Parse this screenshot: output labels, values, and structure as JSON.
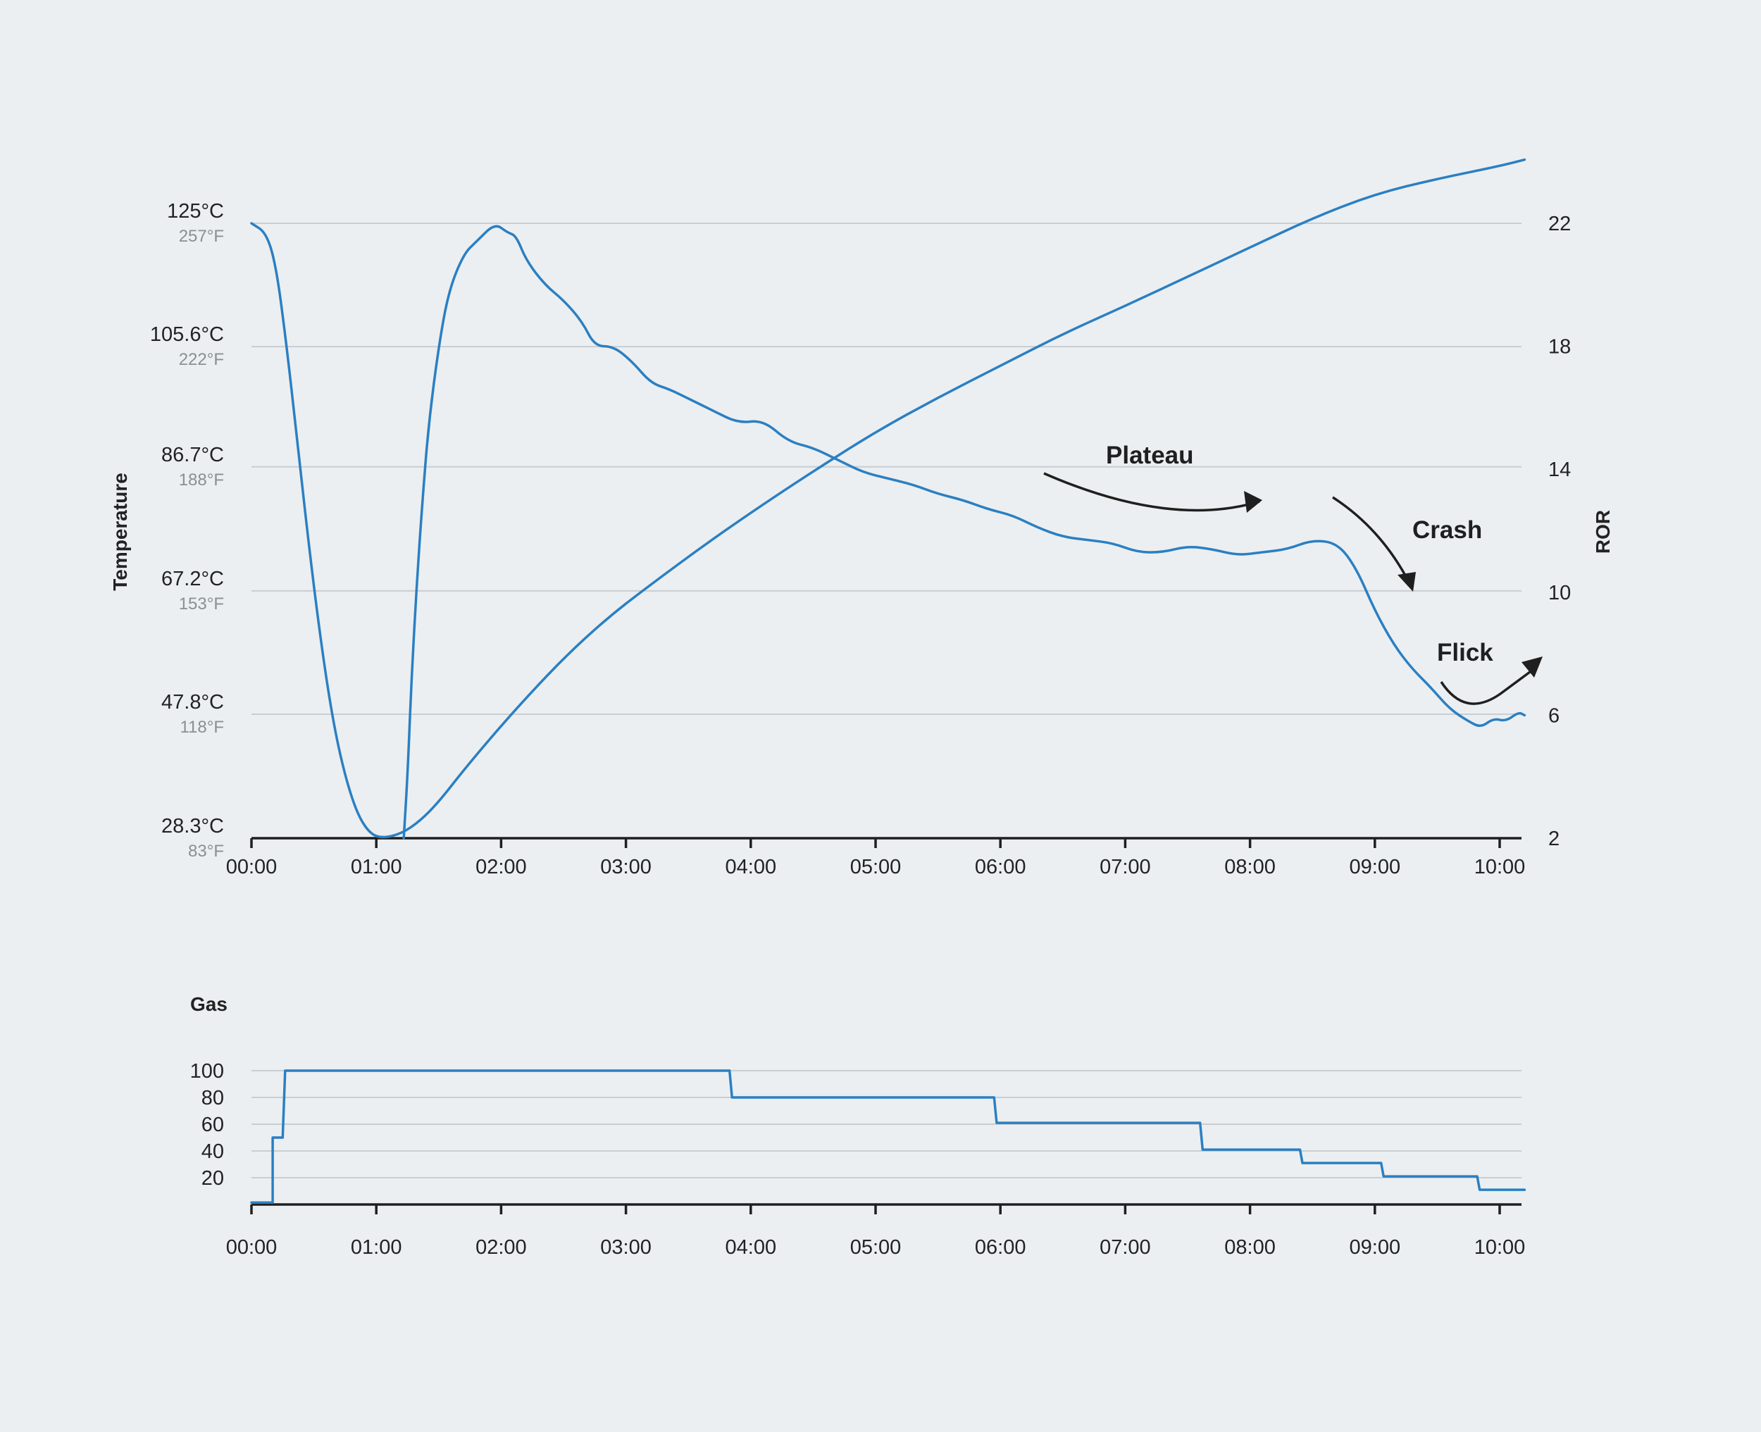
{
  "chart_data": [
    {
      "type": "line",
      "xlabel": "",
      "ylabel": "Temperature",
      "y2label": "ROR",
      "x_ticks": [
        "00:00",
        "01:00",
        "02:00",
        "03:00",
        "04:00",
        "05:00",
        "06:00",
        "07:00",
        "08:00",
        "09:00",
        "10:00"
      ],
      "x_range_min": [
        0,
        10.2
      ],
      "y_ticks": [
        {
          "c": "125°C",
          "f": "257°F",
          "v": 125
        },
        {
          "c": "105.6°C",
          "f": "222°F",
          "v": 105.6
        },
        {
          "c": "86.7°C",
          "f": "188°F",
          "v": 86.7
        },
        {
          "c": "67.2°C",
          "f": "153°F",
          "v": 67.2
        },
        {
          "c": "47.8°C",
          "f": "118°F",
          "v": 47.8
        },
        {
          "c": "28.3°C",
          "f": "83°F",
          "v": 28.3
        }
      ],
      "ylim": [
        28.3,
        125
      ],
      "y2_ticks": [
        "22",
        "18",
        "14",
        "10",
        "6",
        "2"
      ],
      "y2lim": [
        2,
        22
      ],
      "grid": true,
      "series": [
        {
          "axis": "left",
          "points_min_value": [
            [
              0,
              125
            ],
            [
              0.12,
              123.5
            ],
            [
              0.2,
              118
            ],
            [
              0.28,
              106
            ],
            [
              0.36,
              92
            ],
            [
              0.45,
              76
            ],
            [
              0.55,
              60
            ],
            [
              0.65,
              47
            ],
            [
              0.75,
              38
            ],
            [
              0.85,
              32
            ],
            [
              0.95,
              29
            ],
            [
              1.05,
              28.3
            ],
            [
              1.2,
              29
            ],
            [
              1.35,
              31
            ],
            [
              1.5,
              34
            ],
            [
              1.7,
              39
            ],
            [
              2.0,
              46
            ],
            [
              2.3,
              52.5
            ],
            [
              2.6,
              58.5
            ],
            [
              2.9,
              63.7
            ],
            [
              3.2,
              68.2
            ],
            [
              3.6,
              74
            ],
            [
              4.0,
              79.5
            ],
            [
              4.5,
              86
            ],
            [
              5.0,
              92.2
            ],
            [
              5.5,
              97.6
            ],
            [
              6.0,
              102.6
            ],
            [
              6.5,
              107.6
            ],
            [
              7.0,
              112
            ],
            [
              7.5,
              116.6
            ],
            [
              8.0,
              121.2
            ],
            [
              8.5,
              125.8
            ],
            [
              9.0,
              129.6
            ],
            [
              9.5,
              132
            ],
            [
              10.0,
              134
            ],
            [
              10.2,
              135
            ]
          ]
        },
        {
          "axis": "right",
          "points_min_value": [
            [
              1.22,
              2
            ],
            [
              1.25,
              4
            ],
            [
              1.28,
              7
            ],
            [
              1.32,
              10
            ],
            [
              1.37,
              13
            ],
            [
              1.42,
              15.5
            ],
            [
              1.5,
              18
            ],
            [
              1.58,
              19.8
            ],
            [
              1.7,
              21
            ],
            [
              1.8,
              21.4
            ],
            [
              1.95,
              22
            ],
            [
              2.05,
              21.7
            ],
            [
              2.12,
              21.6
            ],
            [
              2.2,
              20.8
            ],
            [
              2.35,
              20
            ],
            [
              2.5,
              19.5
            ],
            [
              2.65,
              18.8
            ],
            [
              2.75,
              18
            ],
            [
              2.9,
              18
            ],
            [
              3.05,
              17.5
            ],
            [
              3.2,
              16.8
            ],
            [
              3.35,
              16.6
            ],
            [
              3.5,
              16.3
            ],
            [
              3.7,
              15.9
            ],
            [
              3.9,
              15.5
            ],
            [
              4.1,
              15.6
            ],
            [
              4.3,
              14.9
            ],
            [
              4.5,
              14.7
            ],
            [
              4.7,
              14.3
            ],
            [
              4.9,
              13.9
            ],
            [
              5.1,
              13.7
            ],
            [
              5.3,
              13.5
            ],
            [
              5.5,
              13.2
            ],
            [
              5.7,
              13
            ],
            [
              5.9,
              12.7
            ],
            [
              6.1,
              12.5
            ],
            [
              6.3,
              12.1
            ],
            [
              6.5,
              11.8
            ],
            [
              6.7,
              11.7
            ],
            [
              6.9,
              11.6
            ],
            [
              7.1,
              11.3
            ],
            [
              7.3,
              11.3
            ],
            [
              7.5,
              11.5
            ],
            [
              7.7,
              11.4
            ],
            [
              7.9,
              11.2
            ],
            [
              8.1,
              11.3
            ],
            [
              8.3,
              11.4
            ],
            [
              8.5,
              11.7
            ],
            [
              8.7,
              11.6
            ],
            [
              8.85,
              10.8
            ],
            [
              9.0,
              9.4
            ],
            [
              9.15,
              8.3
            ],
            [
              9.3,
              7.5
            ],
            [
              9.45,
              6.9
            ],
            [
              9.6,
              6.2
            ],
            [
              9.75,
              5.8
            ],
            [
              9.85,
              5.6
            ],
            [
              9.95,
              5.9
            ],
            [
              10.05,
              5.8
            ],
            [
              10.15,
              6.1
            ],
            [
              10.2,
              6
            ]
          ]
        }
      ],
      "annotations": [
        {
          "text": "Plateau"
        },
        {
          "text": "Crash"
        },
        {
          "text": "Flick"
        }
      ]
    },
    {
      "type": "line",
      "title": "Gas",
      "x_ticks": [
        "00:00",
        "01:00",
        "02:00",
        "03:00",
        "04:00",
        "05:00",
        "06:00",
        "07:00",
        "08:00",
        "09:00",
        "10:00"
      ],
      "y_ticks": [
        "100",
        "80",
        "60",
        "40",
        "20"
      ],
      "ylim": [
        0,
        100
      ],
      "series": [
        {
          "step": true,
          "points_min_value": [
            [
              0,
              1.5
            ],
            [
              0.17,
              1.5
            ],
            [
              0.17,
              50
            ],
            [
              0.25,
              50
            ],
            [
              0.27,
              100
            ],
            [
              3.83,
              100
            ],
            [
              3.85,
              80
            ],
            [
              5.95,
              80
            ],
            [
              5.97,
              61
            ],
            [
              7.6,
              61
            ],
            [
              7.62,
              41
            ],
            [
              8.4,
              41
            ],
            [
              8.42,
              31
            ],
            [
              9.05,
              31
            ],
            [
              9.07,
              21
            ],
            [
              9.82,
              21
            ],
            [
              9.84,
              11
            ],
            [
              10.2,
              11
            ]
          ]
        }
      ]
    }
  ]
}
